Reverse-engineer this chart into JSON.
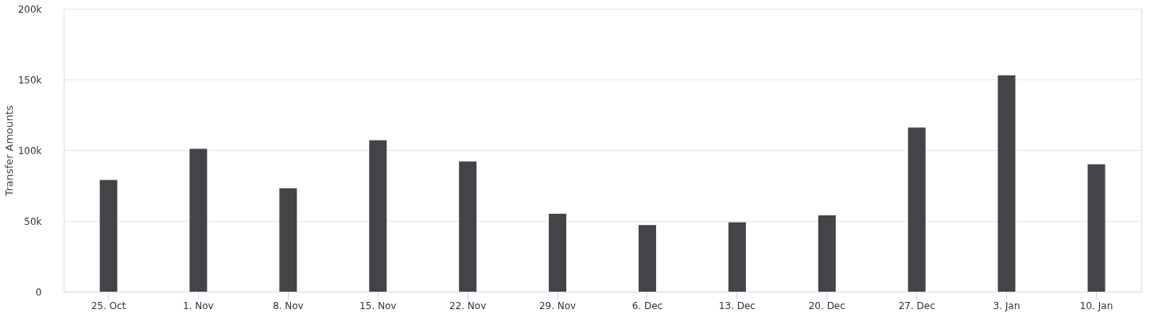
{
  "chart_data": {
    "type": "bar",
    "ylabel": "Transfer Amounts",
    "categories": [
      "25. Oct",
      "1. Nov",
      "8. Nov",
      "15. Nov",
      "22. Nov",
      "29. Nov",
      "6. Dec",
      "13. Dec",
      "20. Dec",
      "27. Dec",
      "3. Jan",
      "10. Jan"
    ],
    "series": [
      {
        "color": "#434348",
        "values": [
          79000,
          101000,
          73000,
          107000,
          92000,
          55000,
          47000,
          49000,
          54000,
          116000,
          153000,
          90000
        ]
      }
    ],
    "ylim": [
      0,
      200000
    ],
    "yticks": [
      {
        "value": 0,
        "label": "0"
      },
      {
        "value": 50000,
        "label": "50k"
      },
      {
        "value": 100000,
        "label": "100k"
      },
      {
        "value": 150000,
        "label": "150k"
      },
      {
        "value": 200000,
        "label": "200k"
      }
    ],
    "grid": "y"
  }
}
